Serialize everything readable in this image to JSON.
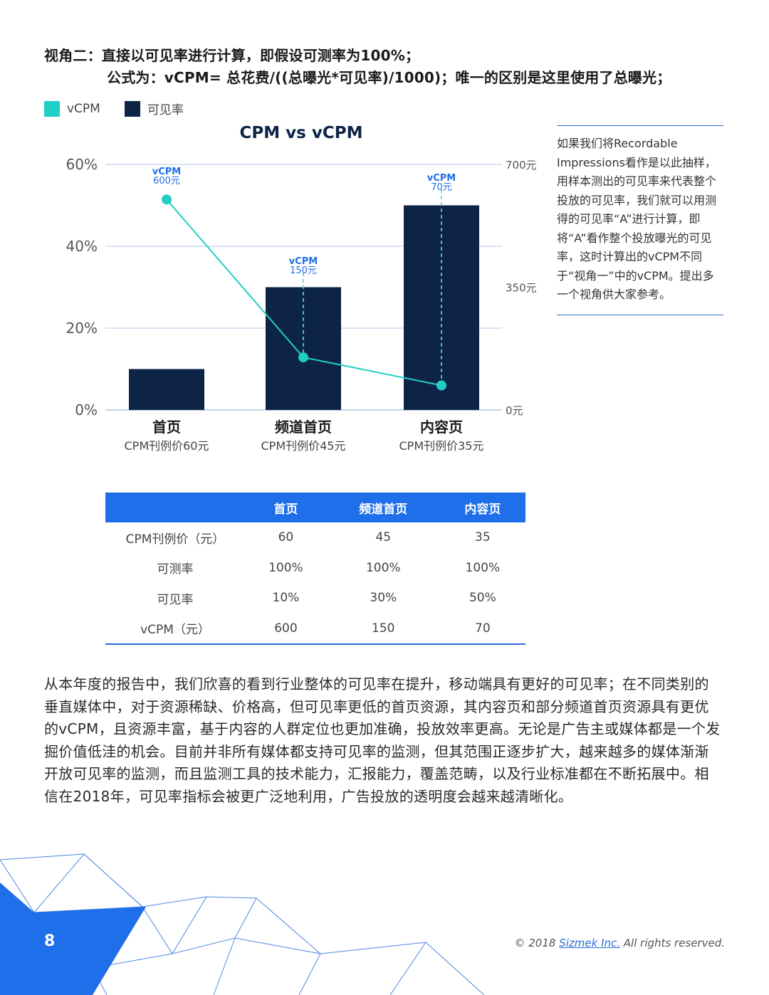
{
  "heading": {
    "line1": "视角二：直接以可见率进行计算，即假设可测率为100%；",
    "line2": "公式为：vCPM= 总花费/((总曝光*可见率)/1000)；唯一的区别是这里使用了总曝光；"
  },
  "legend": {
    "items": [
      {
        "label": "vCPM",
        "color": "#20cfc4"
      },
      {
        "label": "可见率",
        "color": "#0d2447"
      }
    ]
  },
  "chart_data": {
    "type": "bar+line",
    "title": "CPM vs vCPM",
    "categories": [
      "首页",
      "频道首页",
      "内容页"
    ],
    "category_sublabels": [
      "CPM刊例价60元",
      "CPM刊例价45元",
      "CPM刊例价35元"
    ],
    "series": [
      {
        "name": "可见率",
        "type": "bar",
        "axis": "left",
        "values": [
          10,
          30,
          50
        ],
        "color": "#0d2447"
      },
      {
        "name": "vCPM",
        "type": "line",
        "axis": "right",
        "values": [
          600,
          150,
          70
        ],
        "color": "#20cfc4"
      }
    ],
    "left_axis": {
      "ticks": [
        "0%",
        "20%",
        "40%",
        "60%"
      ],
      "ylim": [
        0,
        60
      ]
    },
    "right_axis": {
      "ticks": [
        "0元",
        "350元",
        "700元"
      ],
      "ylim": [
        0,
        700
      ]
    },
    "annotations": [
      {
        "label": "vCPM",
        "value": "600元"
      },
      {
        "label": "vCPM",
        "value": "150元"
      },
      {
        "label": "vCPM",
        "value": "70元"
      }
    ],
    "grid": true
  },
  "sidebar": {
    "text": "如果我们将Recordable Impressions看作是以此抽样，用样本测出的可见率来代表整个投放的可见率，我们就可以用测得的可见率“A”进行计算，即将“A”看作整个投放曝光的可见率，这时计算出的vCPM不同于“视角一”中的vCPM。提出多一个视角供大家参考。"
  },
  "table": {
    "headers": [
      "",
      "首页",
      "频道首页",
      "内容页"
    ],
    "rows": [
      {
        "label": "CPM刊例价（元）",
        "values": [
          "60",
          "45",
          "35"
        ]
      },
      {
        "label": "可测率",
        "values": [
          "100%",
          "100%",
          "100%"
        ]
      },
      {
        "label": "可见率",
        "values": [
          "10%",
          "30%",
          "50%"
        ]
      },
      {
        "label": "vCPM（元）",
        "values": [
          "600",
          "150",
          "70"
        ]
      }
    ]
  },
  "body": {
    "paragraph": "从本年度的报告中，我们欣喜的看到行业整体的可见率在提升，移动端具有更好的可见率；在不同类别的垂直媒体中，对于资源稀缺、价格高，但可见率更低的首页资源，其内容页和部分频道首页资源具有更优的vCPM，且资源丰富，基于内容的人群定位也更加准确，投放效率更高。无论是广告主或媒体都是一个发掘价值低洼的机会。目前并非所有媒体都支持可见率的监测，但其范围正逐步扩大，越来越多的媒体渐渐开放可见率的监测，而且监测工具的技术能力，汇报能力，覆盖范畴，以及行业标准都在不断拓展中。相信在2018年，可见率指标会被更广泛地利用，广告投放的透明度会越来越清晰化。"
  },
  "footer": {
    "page_number": "8",
    "copyright_prefix": "© 2018 ",
    "copyright_link": "Sizmek Inc.",
    "copyright_suffix": " All rights reserved.",
    "accent_color": "#1f6fea"
  }
}
